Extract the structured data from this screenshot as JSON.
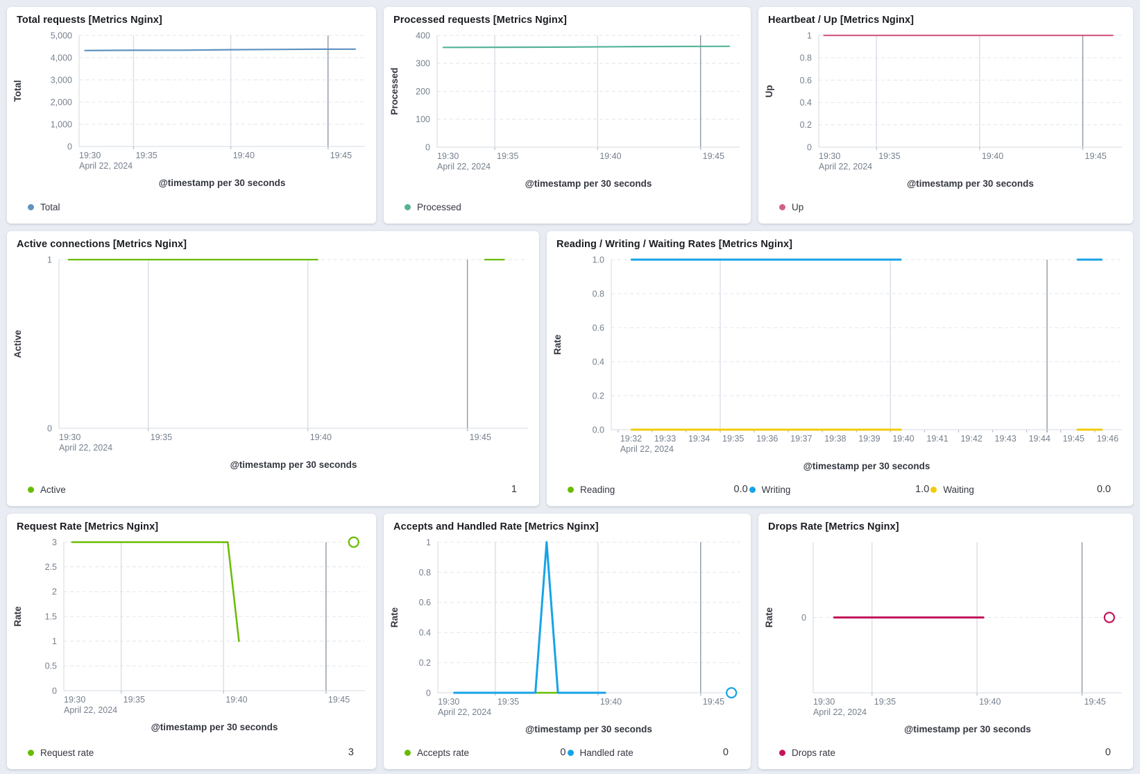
{
  "chart_data": [
    {
      "id": "total-requests",
      "type": "line",
      "title": "Total requests [Metrics Nginx]",
      "xlabel": "@timestamp per 30 seconds",
      "ylabel": "Total",
      "x_unit": "minutes after 19:30 on April 22, 2024",
      "xlim": [
        2.2,
        16.9
      ],
      "ylim": [
        0,
        5000
      ],
      "yticks": [
        {
          "v": 0,
          "label": "0"
        },
        {
          "v": 1000,
          "label": "1,000"
        },
        {
          "v": 2000,
          "label": "2,000"
        },
        {
          "v": 3000,
          "label": "3,000"
        },
        {
          "v": 4000,
          "label": "4,000"
        },
        {
          "v": 5000,
          "label": "5,000"
        }
      ],
      "xticks": [
        {
          "v": 2.2,
          "label": "19:30",
          "sublabel": "April 22, 2024",
          "edge": true
        },
        {
          "v": 5,
          "label": "19:35"
        },
        {
          "v": 10,
          "label": "19:40"
        },
        {
          "v": 15,
          "label": "19:45"
        }
      ],
      "gridlines": {
        "vertical_light": [
          5,
          10
        ],
        "vertical_dark": 15
      },
      "series": [
        {
          "name": "Total",
          "color": "#6092C0",
          "width": 2.2,
          "segments": [
            [
              [
                2.5,
                4320
              ],
              [
                5,
                4330
              ],
              [
                7.5,
                4335
              ],
              [
                10,
                4355
              ],
              [
                12.5,
                4370
              ],
              [
                14.5,
                4378
              ],
              [
                16.4,
                4382
              ]
            ]
          ]
        }
      ],
      "markers": [],
      "legend": {
        "columns": 1,
        "items": [
          {
            "label": "Total",
            "color": "#6092C0",
            "value": null
          }
        ]
      }
    },
    {
      "id": "processed-requests",
      "type": "line",
      "title": "Processed requests [Metrics Nginx]",
      "xlabel": "@timestamp per 30 seconds",
      "ylabel": "Processed",
      "x_unit": "minutes after 19:30 on April 22, 2024",
      "xlim": [
        2.2,
        16.9
      ],
      "ylim": [
        0,
        400
      ],
      "yticks": [
        {
          "v": 0,
          "label": "0"
        },
        {
          "v": 100,
          "label": "100"
        },
        {
          "v": 200,
          "label": "200"
        },
        {
          "v": 300,
          "label": "300"
        },
        {
          "v": 400,
          "label": "400"
        }
      ],
      "xticks": [
        {
          "v": 2.2,
          "label": "19:30",
          "sublabel": "April 22, 2024",
          "edge": true
        },
        {
          "v": 5,
          "label": "19:35"
        },
        {
          "v": 10,
          "label": "19:40"
        },
        {
          "v": 15,
          "label": "19:45"
        }
      ],
      "gridlines": {
        "vertical_light": [
          5,
          10
        ],
        "vertical_dark": 15
      },
      "series": [
        {
          "name": "Processed",
          "color": "#54B399",
          "width": 2.2,
          "segments": [
            [
              [
                2.5,
                357
              ],
              [
                8,
                358
              ],
              [
                12,
                360
              ],
              [
                16.4,
                361
              ]
            ]
          ]
        }
      ],
      "markers": [],
      "legend": {
        "columns": 1,
        "items": [
          {
            "label": "Processed",
            "color": "#54B399",
            "value": null
          }
        ]
      }
    },
    {
      "id": "heartbeat-up",
      "type": "line",
      "title": "Heartbeat / Up [Metrics Nginx]",
      "xlabel": "@timestamp per 30 seconds",
      "ylabel": "Up",
      "x_unit": "minutes after 19:30 on April 22, 2024",
      "xlim": [
        2.2,
        16.9
      ],
      "ylim": [
        0,
        1
      ],
      "yticks": [
        {
          "v": 0,
          "label": "0"
        },
        {
          "v": 0.2,
          "label": "0.2"
        },
        {
          "v": 0.4,
          "label": "0.4"
        },
        {
          "v": 0.6,
          "label": "0.6"
        },
        {
          "v": 0.8,
          "label": "0.8"
        },
        {
          "v": 1,
          "label": "1"
        }
      ],
      "xticks": [
        {
          "v": 2.2,
          "label": "19:30",
          "sublabel": "April 22, 2024",
          "edge": true
        },
        {
          "v": 5,
          "label": "19:35"
        },
        {
          "v": 10,
          "label": "19:40"
        },
        {
          "v": 15,
          "label": "19:45"
        }
      ],
      "gridlines": {
        "vertical_light": [
          5,
          10
        ],
        "vertical_dark": 15
      },
      "series": [
        {
          "name": "Up",
          "color": "#D36086",
          "width": 2.2,
          "segments": [
            [
              [
                2.45,
                1
              ],
              [
                16.45,
                1
              ]
            ]
          ]
        }
      ],
      "markers": [],
      "legend": {
        "columns": 1,
        "items": [
          {
            "label": "Up",
            "color": "#D36086",
            "value": null
          }
        ]
      }
    },
    {
      "id": "active-connections",
      "type": "line",
      "title": "Active connections [Metrics Nginx]",
      "xlabel": "@timestamp per 30 seconds",
      "ylabel": "Active",
      "x_unit": "minutes after 19:30 on April 22, 2024",
      "xlim": [
        2.2,
        16.9
      ],
      "ylim": [
        0,
        1
      ],
      "yticks": [
        {
          "v": 0,
          "label": "0"
        },
        {
          "v": 1,
          "label": "1"
        }
      ],
      "xticks": [
        {
          "v": 2.2,
          "label": "19:30",
          "sublabel": "April 22, 2024",
          "edge": true
        },
        {
          "v": 5,
          "label": "19:35"
        },
        {
          "v": 10,
          "label": "19:40"
        },
        {
          "v": 15,
          "label": "19:45"
        }
      ],
      "gridlines": {
        "vertical_light": [
          5,
          10
        ],
        "vertical_dark": 15
      },
      "series": [
        {
          "name": "Active",
          "color": "#68BC00",
          "width": 2.2,
          "segments": [
            [
              [
                2.5,
                1
              ],
              [
                10.3,
                1
              ]
            ],
            [
              [
                15.55,
                1
              ],
              [
                16.15,
                1
              ]
            ]
          ]
        }
      ],
      "markers": [],
      "legend": {
        "columns": 1,
        "items": [
          {
            "label": "Active",
            "color": "#68BC00",
            "value": "1"
          }
        ]
      }
    },
    {
      "id": "reading-writing-waiting-rates",
      "type": "line",
      "title": "Reading / Writing / Waiting Rates [Metrics Nginx]",
      "xlabel": "@timestamp per 30 seconds",
      "ylabel": "Rate",
      "x_unit": "minutes after 19:30 on April 22, 2024",
      "xlim": [
        1.8,
        16.8
      ],
      "ylim": [
        0,
        1
      ],
      "yticks": [
        {
          "v": 0,
          "label": "0.0"
        },
        {
          "v": 0.2,
          "label": "0.2"
        },
        {
          "v": 0.4,
          "label": "0.4"
        },
        {
          "v": 0.6,
          "label": "0.6"
        },
        {
          "v": 0.8,
          "label": "0.8"
        },
        {
          "v": 1,
          "label": "1.0"
        }
      ],
      "xticks": [
        {
          "v": 2,
          "label": "19:32",
          "sublabel": "April 22, 2024"
        },
        {
          "v": 3,
          "label": "19:33"
        },
        {
          "v": 4,
          "label": "19:34"
        },
        {
          "v": 5,
          "label": "19:35"
        },
        {
          "v": 6,
          "label": "19:36"
        },
        {
          "v": 7,
          "label": "19:37"
        },
        {
          "v": 8,
          "label": "19:38"
        },
        {
          "v": 9,
          "label": "19:39"
        },
        {
          "v": 10,
          "label": "19:40"
        },
        {
          "v": 11,
          "label": "19:41"
        },
        {
          "v": 12,
          "label": "19:42"
        },
        {
          "v": 13,
          "label": "19:43"
        },
        {
          "v": 14,
          "label": "19:44"
        },
        {
          "v": 15,
          "label": "19:45"
        },
        {
          "v": 16,
          "label": "19:46"
        }
      ],
      "gridlines": {
        "vertical_light": [
          5,
          10
        ],
        "vertical_dark": 14.6
      },
      "series": [
        {
          "name": "Reading",
          "color": "#68BC00",
          "width": 3,
          "segments": [
            [
              [
                2.4,
                0
              ],
              [
                10.3,
                0
              ]
            ],
            [
              [
                15.5,
                0
              ],
              [
                16.2,
                0
              ]
            ]
          ]
        },
        {
          "name": "Writing",
          "color": "#17A3E6",
          "width": 3,
          "segments": [
            [
              [
                2.4,
                1
              ],
              [
                10.3,
                1
              ]
            ],
            [
              [
                15.5,
                1
              ],
              [
                16.2,
                1
              ]
            ]
          ]
        },
        {
          "name": "Waiting",
          "color": "#F0CB0C",
          "width": 3,
          "segments": [
            [
              [
                2.4,
                0
              ],
              [
                10.3,
                0
              ]
            ],
            [
              [
                15.5,
                0
              ],
              [
                16.2,
                0
              ]
            ]
          ]
        }
      ],
      "markers": [],
      "legend": {
        "columns": 3,
        "items": [
          {
            "label": "Reading",
            "color": "#68BC00",
            "value": "0.0"
          },
          {
            "label": "Writing",
            "color": "#17A3E6",
            "value": "1.0"
          },
          {
            "label": "Waiting",
            "color": "#F0CB0C",
            "value": "0.0"
          }
        ]
      }
    },
    {
      "id": "request-rate",
      "type": "line",
      "title": "Request Rate [Metrics Nginx]",
      "xlabel": "@timestamp per 30 seconds",
      "ylabel": "Rate",
      "x_unit": "minutes after 19:30 on April 22, 2024",
      "xlim": [
        2.2,
        16.9
      ],
      "ylim": [
        0,
        3
      ],
      "yticks": [
        {
          "v": 0,
          "label": "0"
        },
        {
          "v": 0.5,
          "label": "0.5"
        },
        {
          "v": 1,
          "label": "1"
        },
        {
          "v": 1.5,
          "label": "1.5"
        },
        {
          "v": 2,
          "label": "2"
        },
        {
          "v": 2.5,
          "label": "2.5"
        },
        {
          "v": 3,
          "label": "3"
        }
      ],
      "xticks": [
        {
          "v": 2.2,
          "label": "19:30",
          "sublabel": "April 22, 2024",
          "edge": true
        },
        {
          "v": 5,
          "label": "19:35"
        },
        {
          "v": 10,
          "label": "19:40"
        },
        {
          "v": 15,
          "label": "19:45"
        }
      ],
      "gridlines": {
        "vertical_light": [
          5,
          10
        ],
        "vertical_dark": 15
      },
      "series": [
        {
          "name": "Request rate",
          "color": "#68BC00",
          "width": 2.5,
          "segments": [
            [
              [
                2.6,
                3
              ],
              [
                10.2,
                3
              ],
              [
                10.75,
                1
              ]
            ]
          ]
        }
      ],
      "markers": [
        {
          "x": 16.35,
          "y": 3,
          "color": "#68BC00"
        }
      ],
      "legend": {
        "columns": 1,
        "items": [
          {
            "label": "Request rate",
            "color": "#68BC00",
            "value": "3"
          }
        ]
      }
    },
    {
      "id": "accepts-handled-rate",
      "type": "line",
      "title": "Accepts and Handled Rate [Metrics Nginx]",
      "xlabel": "@timestamp per 30 seconds",
      "ylabel": "Rate",
      "x_unit": "minutes after 19:30 on April 22, 2024",
      "xlim": [
        2.2,
        16.9
      ],
      "ylim": [
        0,
        1
      ],
      "yticks": [
        {
          "v": 0,
          "label": "0"
        },
        {
          "v": 0.2,
          "label": "0.2"
        },
        {
          "v": 0.4,
          "label": "0.4"
        },
        {
          "v": 0.6,
          "label": "0.6"
        },
        {
          "v": 0.8,
          "label": "0.8"
        },
        {
          "v": 1,
          "label": "1"
        }
      ],
      "xticks": [
        {
          "v": 2.2,
          "label": "19:30",
          "sublabel": "April 22, 2024",
          "edge": true
        },
        {
          "v": 5,
          "label": "19:35"
        },
        {
          "v": 10,
          "label": "19:40"
        },
        {
          "v": 15,
          "label": "19:45"
        }
      ],
      "gridlines": {
        "vertical_light": [
          5,
          10
        ],
        "vertical_dark": 15
      },
      "series": [
        {
          "name": "Accepts rate",
          "color": "#68BC00",
          "width": 2.5,
          "segments": [
            [
              [
                3.0,
                0
              ],
              [
                10.35,
                0
              ]
            ]
          ]
        },
        {
          "name": "Handled rate",
          "color": "#17A3E6",
          "width": 3,
          "segments": [
            [
              [
                3.0,
                0
              ],
              [
                6.95,
                0
              ],
              [
                7.5,
                1
              ],
              [
                8.05,
                0
              ],
              [
                10.35,
                0
              ]
            ]
          ]
        }
      ],
      "markers": [
        {
          "x": 16.5,
          "y": 0,
          "color": "#17A3E6"
        }
      ],
      "legend": {
        "columns": 2,
        "items": [
          {
            "label": "Accepts rate",
            "color": "#68BC00",
            "value": "0"
          },
          {
            "label": "Handled rate",
            "color": "#17A3E6",
            "value": "0"
          }
        ]
      }
    },
    {
      "id": "drops-rate",
      "type": "line",
      "title": "Drops Rate [Metrics Nginx]",
      "xlabel": "@timestamp per 30 seconds",
      "ylabel": "Rate",
      "x_unit": "minutes after 19:30 on April 22, 2024",
      "xlim": [
        2.2,
        16.9
      ],
      "ylim": [
        -1,
        1
      ],
      "yticks": [
        {
          "v": 0,
          "label": "0"
        }
      ],
      "xticks": [
        {
          "v": 2.2,
          "label": "19:30",
          "sublabel": "April 22, 2024",
          "edge": true
        },
        {
          "v": 5,
          "label": "19:35"
        },
        {
          "v": 10,
          "label": "19:40"
        },
        {
          "v": 15,
          "label": "19:45"
        }
      ],
      "gridlines": {
        "vertical_light": [
          5,
          10
        ],
        "vertical_dark": 15
      },
      "series": [
        {
          "name": "Drops rate",
          "color": "#C4155C",
          "width": 3,
          "segments": [
            [
              [
                3.2,
                0
              ],
              [
                10.3,
                0
              ]
            ]
          ]
        }
      ],
      "markers": [
        {
          "x": 16.3,
          "y": 0,
          "color": "#C4155C"
        }
      ],
      "legend": {
        "columns": 1,
        "items": [
          {
            "label": "Drops rate",
            "color": "#C4155C",
            "value": "0"
          }
        ]
      }
    }
  ]
}
